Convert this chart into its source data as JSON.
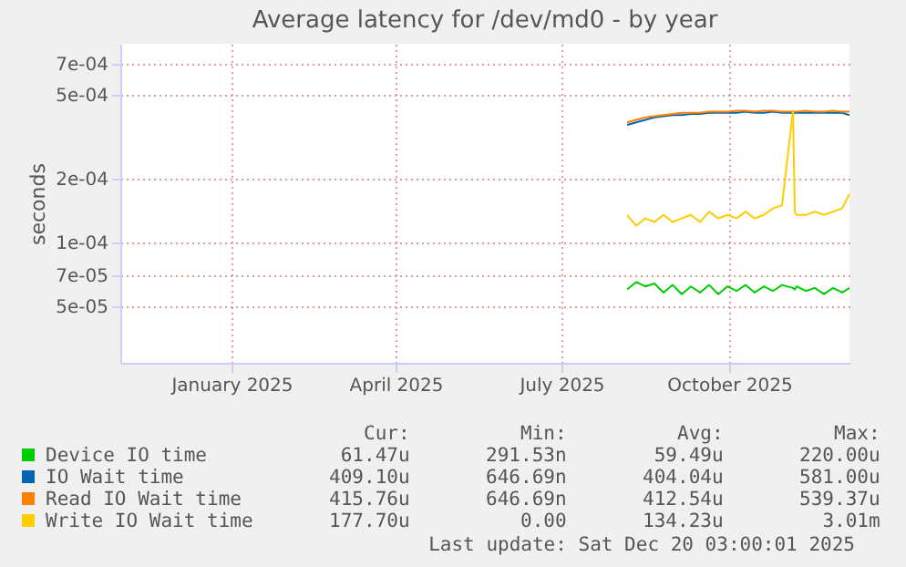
{
  "chart_data": {
    "type": "line",
    "title": "Average latency for /dev/md0 - by year",
    "ylabel": "seconds",
    "x": [
      "2025-08-20",
      "2025-08-25",
      "2025-08-30",
      "2025-09-04",
      "2025-09-09",
      "2025-09-14",
      "2025-09-19",
      "2025-09-24",
      "2025-09-29",
      "2025-10-04",
      "2025-10-09",
      "2025-10-14",
      "2025-10-19",
      "2025-10-24",
      "2025-10-29",
      "2025-11-03",
      "2025-11-08",
      "2025-11-13",
      "2025-11-19",
      "2025-11-20",
      "2025-11-21",
      "2025-11-26",
      "2025-12-01",
      "2025-12-06",
      "2025-12-11",
      "2025-12-16",
      "2025-12-20"
    ],
    "series": [
      {
        "name": "Device IO time",
        "color": "#00cc00",
        "values": [
          6e-05,
          6.5e-05,
          6.2e-05,
          6.4e-05,
          5.8e-05,
          6.3e-05,
          5.7e-05,
          6.2e-05,
          5.8e-05,
          6.3e-05,
          5.7e-05,
          6.2e-05,
          5.9e-05,
          6.3e-05,
          5.8e-05,
          6.2e-05,
          5.9e-05,
          6.3e-05,
          6.1e-05,
          6e-05,
          6.2e-05,
          5.9e-05,
          6.1e-05,
          5.7e-05,
          6.1e-05,
          5.8e-05,
          6.1e-05
        ]
      },
      {
        "name": "IO Wait time",
        "color": "#0066b3",
        "values": [
          0.00036,
          0.00037,
          0.00038,
          0.00039,
          0.000395,
          0.0004,
          0.0004,
          0.000405,
          0.000405,
          0.00041,
          0.00041,
          0.00041,
          0.00041,
          0.000415,
          0.00041,
          0.00041,
          0.000415,
          0.00041,
          0.00041,
          0.00041,
          0.00041,
          0.00041,
          0.00041,
          0.00041,
          0.00041,
          0.00041,
          0.0004
        ]
      },
      {
        "name": "Read IO Wait time",
        "color": "#ff8000",
        "values": [
          0.00037,
          0.00038,
          0.00039,
          0.000395,
          0.0004,
          0.000405,
          0.00041,
          0.00041,
          0.00041,
          0.000415,
          0.000415,
          0.000415,
          0.00042,
          0.00042,
          0.000415,
          0.00042,
          0.00042,
          0.000415,
          0.000415,
          0.000415,
          0.000415,
          0.00042,
          0.000415,
          0.000415,
          0.00042,
          0.000415,
          0.000415
        ]
      },
      {
        "name": "Write IO Wait time",
        "color": "#ffcc00",
        "values": [
          0.000135,
          0.00012,
          0.00013,
          0.000125,
          0.000135,
          0.000125,
          0.00013,
          0.000135,
          0.000125,
          0.00014,
          0.00013,
          0.000135,
          0.00013,
          0.00014,
          0.00013,
          0.000135,
          0.000145,
          0.00015,
          0.00042,
          0.00014,
          0.000135,
          0.000135,
          0.00014,
          0.000135,
          0.00014,
          0.000145,
          0.00017
        ]
      }
    ],
    "log": true,
    "xlim": [
      "2024-11-15",
      "2025-12-20"
    ],
    "xticks": [
      {
        "value": "2025-01-15",
        "label": "January 2025"
      },
      {
        "value": "2025-04-15",
        "label": "April 2025"
      },
      {
        "value": "2025-07-15",
        "label": "July 2025"
      },
      {
        "value": "2025-10-15",
        "label": "October 2025"
      }
    ],
    "ylim": [
      2.7e-05,
      0.00087
    ],
    "yticks": [
      {
        "value": 5e-05,
        "label": "5e-05"
      },
      {
        "value": 7e-05,
        "label": "7e-05"
      },
      {
        "value": 0.0001,
        "label": "1e-04"
      },
      {
        "value": 0.0002,
        "label": "2e-04"
      },
      {
        "value": 0.0005,
        "label": "5e-04"
      },
      {
        "value": 0.0007,
        "label": "7e-04"
      }
    ],
    "grid": true,
    "legend": "bottom",
    "annotations": [
      "Cur:",
      "Min:",
      "Avg:",
      "Max:",
      "61.47u",
      "291.53n",
      "59.49u",
      "220.00u",
      "409.10u",
      "646.69n",
      "404.04u",
      "581.00u",
      "415.76u",
      "646.69n",
      "412.54u",
      "539.37u",
      "177.70u",
      "0.00",
      "134.23u",
      "3.01m",
      "Last update: Sat Dec 20 03:00:01 2025"
    ]
  }
}
